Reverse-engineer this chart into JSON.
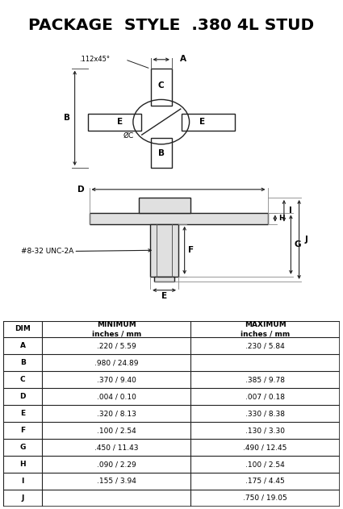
{
  "title": "PACKAGE  STYLE  .380 4L STUD",
  "table_rows": [
    [
      "A",
      ".220 / 5.59",
      ".230 / 5.84"
    ],
    [
      "B",
      ".980 / 24.89",
      ""
    ],
    [
      "C",
      ".370 / 9.40",
      ".385 / 9.78"
    ],
    [
      "D",
      ".004 / 0.10",
      ".007 / 0.18"
    ],
    [
      "E",
      ".320 / 8.13",
      ".330 / 8.38"
    ],
    [
      "F",
      ".100 / 2.54",
      ".130 / 3.30"
    ],
    [
      "G",
      ".450 / 11.43",
      ".490 / 12.45"
    ],
    [
      "H",
      ".090 / 2.29",
      ".100 / 2.54"
    ],
    [
      "I",
      ".155 / 3.94",
      ".175 / 4.45"
    ],
    [
      "J",
      "",
      ".750 / 19.05"
    ]
  ],
  "line_color": "#222222",
  "fill_color": "#e0e0e0"
}
